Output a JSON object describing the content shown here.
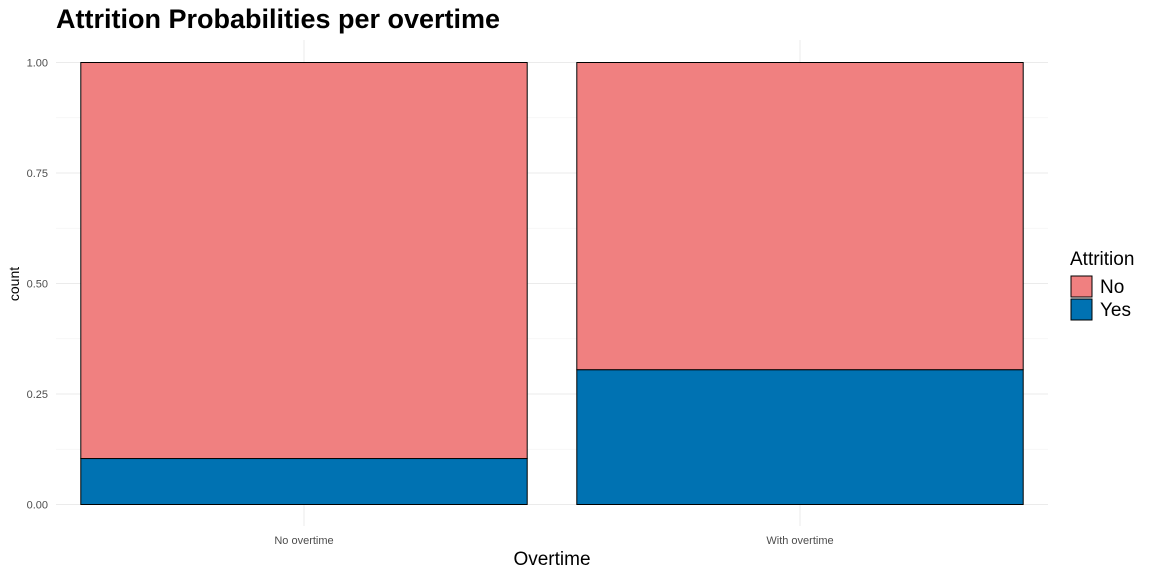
{
  "chart_data": {
    "type": "bar",
    "stacked": true,
    "position": "fill",
    "title": "Attrition Probabilities per overtime",
    "xlabel": "Overtime",
    "ylabel": "count",
    "categories": [
      "No overtime",
      "With overtime"
    ],
    "series": [
      {
        "name": "Yes",
        "values": [
          0.104,
          0.305
        ]
      },
      {
        "name": "No",
        "values": [
          0.896,
          0.695
        ]
      }
    ],
    "ylim": [
      0,
      1
    ],
    "yticks": [
      "0.00",
      "0.25",
      "0.50",
      "0.75",
      "1.00"
    ],
    "grid": true,
    "legend": {
      "title": "Attrition",
      "position": "right",
      "items": [
        {
          "label": "No",
          "color": "#F08080"
        },
        {
          "label": "Yes",
          "color": "#0072B2"
        }
      ]
    },
    "colors": {
      "No": "#F08080",
      "Yes": "#0072B2"
    }
  }
}
